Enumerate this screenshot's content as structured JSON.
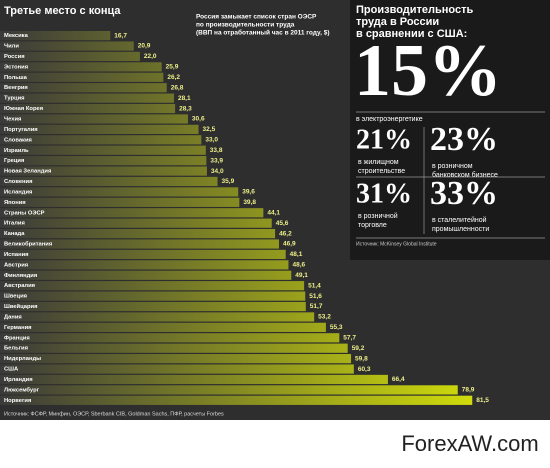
{
  "chart_data": {
    "type": "bar",
    "orientation": "horizontal",
    "title": "Третье место с конца",
    "annotation": [
      "Россия замыкает список стран ОЭСР",
      "по производительности труда",
      "(ВВП на отработанный час в 2011 году, $)"
    ],
    "categories": [
      "Мексика",
      "Чили",
      "Россия",
      "Эстония",
      "Польша",
      "Венгрия",
      "Турция",
      "Южная Корея",
      "Чехия",
      "Португалия",
      "Словакия",
      "Израиль",
      "Греция",
      "Новая Зеландия",
      "Словения",
      "Исландия",
      "Япония",
      "Страны ОЭСР",
      "Италия",
      "Канада",
      "Великобритания",
      "Испания",
      "Австрия",
      "Финляндия",
      "Австралия",
      "Швеция",
      "Швейцария",
      "Дания",
      "Германия",
      "Франция",
      "Бельгия",
      "Нидерланды",
      "США",
      "Ирландия",
      "Люксембург",
      "Норвегия"
    ],
    "values": [
      16.7,
      20.9,
      22.0,
      25.9,
      26.2,
      26.8,
      28.1,
      28.3,
      30.6,
      32.5,
      33.0,
      33.8,
      33.9,
      34.0,
      35.9,
      39.6,
      39.8,
      44.1,
      45.6,
      46.2,
      46.9,
      48.1,
      48.6,
      49.1,
      51.4,
      51.6,
      51.7,
      53.2,
      55.3,
      57.7,
      59.2,
      59.8,
      60.3,
      66.4,
      78.9,
      81.5
    ],
    "value_labels": [
      "16,7",
      "20,9",
      "22,0",
      "25,9",
      "26,2",
      "26,8",
      "28,1",
      "28,3",
      "30,6",
      "32,5",
      "33,0",
      "33,8",
      "33,9",
      "34,0",
      "35,9",
      "39,6",
      "39,8",
      "44,1",
      "45,6",
      "46,2",
      "46,9",
      "48,1",
      "48,6",
      "49,1",
      "51,4",
      "51,6",
      "51,7",
      "53,2",
      "55,3",
      "57,7",
      "59,2",
      "59,8",
      "60,3",
      "66,4",
      "78,9",
      "81,5"
    ],
    "color": "#d2de0a",
    "source": "Источник: ФСФР, Минфин, ОЭСР, Sberbank CIB, Goldman Sachs, ПФР, расчеты Forbes"
  },
  "panel": {
    "title": [
      "Производительность",
      "труда в России",
      "в сравнении с США:"
    ],
    "main": {
      "value": "15%",
      "caption": [
        "в электроэнергетике"
      ]
    },
    "items": [
      {
        "value": "21%",
        "caption": [
          "в жилищном",
          "строительстве"
        ]
      },
      {
        "value": "23%",
        "caption": [
          "в розничном",
          "банковском бизнесе"
        ]
      },
      {
        "value": "31%",
        "caption": [
          "в розничной",
          "торговле"
        ]
      },
      {
        "value": "33%",
        "caption": [
          "в сталелитейной",
          "промышленности"
        ]
      }
    ],
    "source": "Источник: McKinsey Global Institute"
  },
  "watermark": "ForexAW.com"
}
